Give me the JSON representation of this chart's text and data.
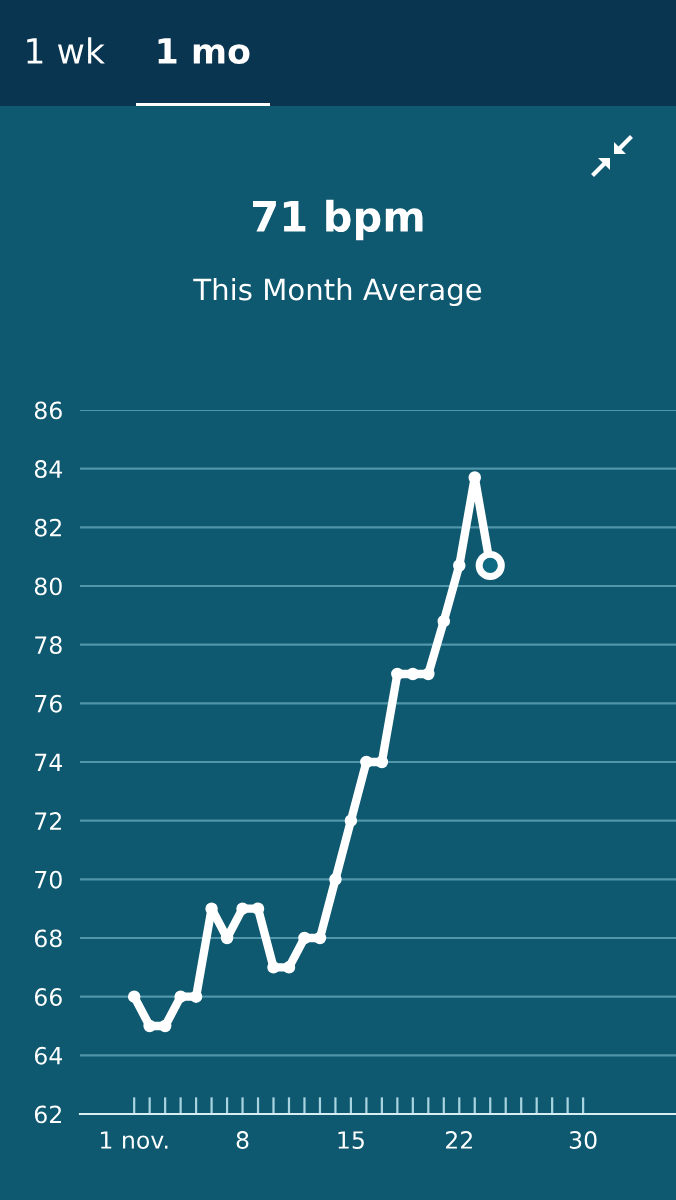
{
  "chart_data": {
    "type": "line",
    "title": "71 bpm",
    "subtitle": "This Month Average",
    "annotations": [
      "1 wk",
      "1 mo"
    ],
    "x": [
      1,
      2,
      3,
      4,
      5,
      6,
      7,
      8,
      9,
      10,
      11,
      12,
      13,
      14,
      15,
      16,
      17,
      18,
      19,
      20,
      21,
      22,
      23,
      24
    ],
    "series": [
      {
        "color": "#ffffff",
        "values": [
          66,
          65,
          65,
          66,
          66,
          69,
          68,
          69,
          69,
          67,
          67,
          68,
          68,
          70,
          72,
          74,
          74,
          77,
          77,
          77,
          78.8,
          80.7,
          83.7,
          80.7
        ]
      }
    ],
    "xlim": [
      -2.5,
      36
    ],
    "xticks": [
      {
        "value": 1,
        "label": "1 nov."
      },
      {
        "value": 2,
        "label": null
      },
      {
        "value": 3,
        "label": null
      },
      {
        "value": 4,
        "label": null
      },
      {
        "value": 5,
        "label": null
      },
      {
        "value": 6,
        "label": null
      },
      {
        "value": 7,
        "label": null
      },
      8,
      {
        "value": 9,
        "label": null
      },
      {
        "value": 10,
        "label": null
      },
      {
        "value": 11,
        "label": null
      },
      {
        "value": 12,
        "label": null
      },
      {
        "value": 13,
        "label": null
      },
      {
        "value": 14,
        "label": null
      },
      15,
      {
        "value": 16,
        "label": null
      },
      {
        "value": 17,
        "label": null
      },
      {
        "value": 18,
        "label": null
      },
      {
        "value": 19,
        "label": null
      },
      {
        "value": 20,
        "label": null
      },
      {
        "value": 21,
        "label": null
      },
      22,
      {
        "value": 23,
        "label": null
      },
      {
        "value": 24,
        "label": null
      },
      {
        "value": 25,
        "label": null
      },
      {
        "value": 26,
        "label": null
      },
      {
        "value": 27,
        "label": null
      },
      {
        "value": 28,
        "label": null
      },
      {
        "value": 29,
        "label": null
      },
      30
    ],
    "ylim": [
      62,
      86
    ],
    "yticks": [
      62,
      64,
      66,
      68,
      70,
      72,
      74,
      76,
      78,
      80,
      82,
      84,
      86
    ],
    "grid": "y",
    "marker": "circle",
    "line_style": "solid"
  }
}
